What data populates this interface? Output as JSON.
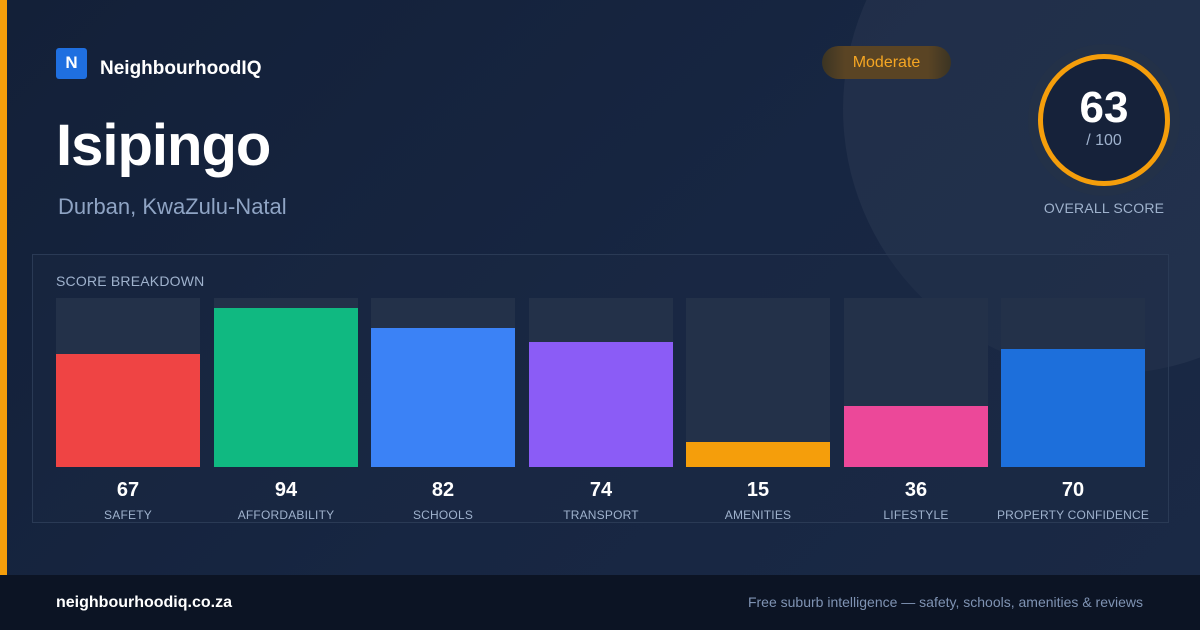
{
  "brand": {
    "logo_letter": "N",
    "name": "NeighbourhoodIQ"
  },
  "location": {
    "name": "Isipingo",
    "region": "Durban, KwaZulu-Natal"
  },
  "rating": {
    "label": "Moderate",
    "color": "#f5a623"
  },
  "overall": {
    "score": "63",
    "max": "/ 100",
    "label": "OVERALL SCORE",
    "ring_color": "#f59e0b"
  },
  "breakdown": {
    "title": "SCORE BREAKDOWN",
    "items": [
      {
        "label": "SAFETY",
        "value": 67,
        "color": "#ef4444"
      },
      {
        "label": "AFFORDABILITY",
        "value": 94,
        "color": "#10b981"
      },
      {
        "label": "SCHOOLS",
        "value": 82,
        "color": "#3b82f6"
      },
      {
        "label": "TRANSPORT",
        "value": 74,
        "color": "#8b5cf6"
      },
      {
        "label": "AMENITIES",
        "value": 15,
        "color": "#f59e0b"
      },
      {
        "label": "LIFESTYLE",
        "value": 36,
        "color": "#ec4899"
      },
      {
        "label": "PROPERTY CONFIDENCE",
        "value": 70,
        "color": "#1d6fdb"
      }
    ]
  },
  "footer": {
    "url": "neighbourhoodiq.co.za",
    "tagline": "Free suburb intelligence — safety, schools, amenities & reviews"
  }
}
